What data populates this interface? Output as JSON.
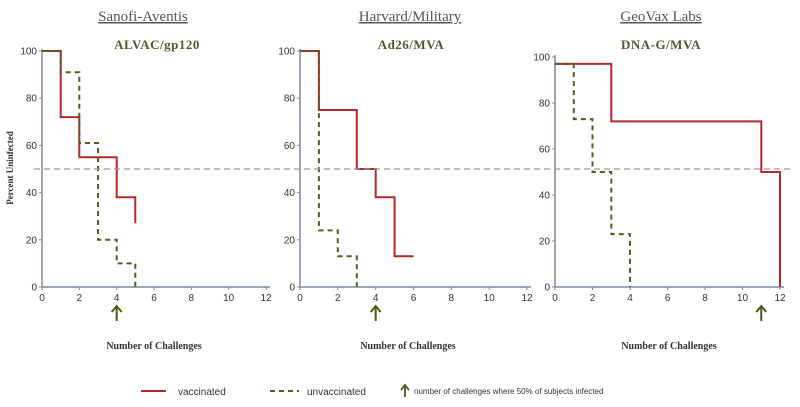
{
  "chart_data": [
    {
      "type": "line",
      "title": "Sanofi-Aventis",
      "subtitle": "ALVAC/gp120",
      "xlabel": "Number of Challenges",
      "ylabel": "Percent Uninfected",
      "xlim": [
        0,
        12
      ],
      "ylim": [
        0,
        100
      ],
      "xticks": [
        0,
        2,
        4,
        6,
        8,
        10,
        12
      ],
      "yticks": [
        0,
        20,
        40,
        60,
        80,
        100
      ],
      "reference_line": 50,
      "series": [
        {
          "name": "vaccinated",
          "x": [
            0,
            1,
            1,
            2,
            2,
            4,
            4,
            5,
            5
          ],
          "y": [
            100,
            100,
            72,
            72,
            55,
            55,
            38,
            38,
            27
          ]
        },
        {
          "name": "unvaccinated",
          "x": [
            0,
            1,
            1,
            2,
            2,
            3,
            3,
            4,
            4,
            5,
            5
          ],
          "y": [
            100,
            100,
            91,
            91,
            61,
            61,
            20,
            20,
            10,
            10,
            0
          ]
        }
      ],
      "arrow_x": 4
    },
    {
      "type": "line",
      "title": "Harvard/Military",
      "subtitle": "Ad26/MVA",
      "xlabel": "Number of Challenges",
      "ylabel": "",
      "xlim": [
        0,
        12
      ],
      "ylim": [
        0,
        100
      ],
      "xticks": [
        0,
        2,
        4,
        6,
        8,
        10,
        12
      ],
      "yticks": [
        0,
        20,
        40,
        60,
        80,
        100
      ],
      "reference_line": 50,
      "series": [
        {
          "name": "vaccinated",
          "x": [
            0,
            1,
            1,
            3,
            3,
            4,
            4,
            5,
            5,
            6
          ],
          "y": [
            100,
            100,
            75,
            75,
            50,
            50,
            38,
            38,
            13,
            13
          ]
        },
        {
          "name": "unvaccinated",
          "x": [
            0,
            1,
            1,
            2,
            2,
            3,
            3
          ],
          "y": [
            100,
            100,
            24,
            24,
            13,
            13,
            0
          ]
        }
      ],
      "arrow_x": 4
    },
    {
      "type": "line",
      "title": "GeoVax Labs",
      "subtitle": "DNA-G/MVA",
      "xlabel": "Number of Challenges",
      "ylabel": "",
      "xlim": [
        0,
        12
      ],
      "ylim": [
        0,
        100
      ],
      "xticks": [
        0,
        2,
        4,
        6,
        8,
        10,
        12
      ],
      "yticks": [
        0,
        20,
        40,
        60,
        80,
        100
      ],
      "reference_line": 50,
      "series": [
        {
          "name": "vaccinated",
          "x": [
            0,
            3,
            3,
            11,
            11,
            12,
            12
          ],
          "y": [
            97,
            97,
            72,
            72,
            50,
            50,
            0
          ]
        },
        {
          "name": "unvaccinated",
          "x": [
            0,
            1,
            1,
            2,
            2,
            3,
            3,
            4,
            4
          ],
          "y": [
            97,
            97,
            73,
            73,
            50,
            50,
            23,
            23,
            0
          ]
        }
      ],
      "arrow_x": 11
    }
  ],
  "colors": {
    "vaccinated": "#b22a2a",
    "unvaccinated": "#5a5a22",
    "arrow": "#4a5a1a",
    "axis": "#7d8aa6",
    "reference": "#9a9a9a"
  },
  "legend": {
    "vaccinated": "vaccinated",
    "unvaccinated": "unvaccinated",
    "arrow_note": "number of challenges where 50% of subjects infected"
  }
}
